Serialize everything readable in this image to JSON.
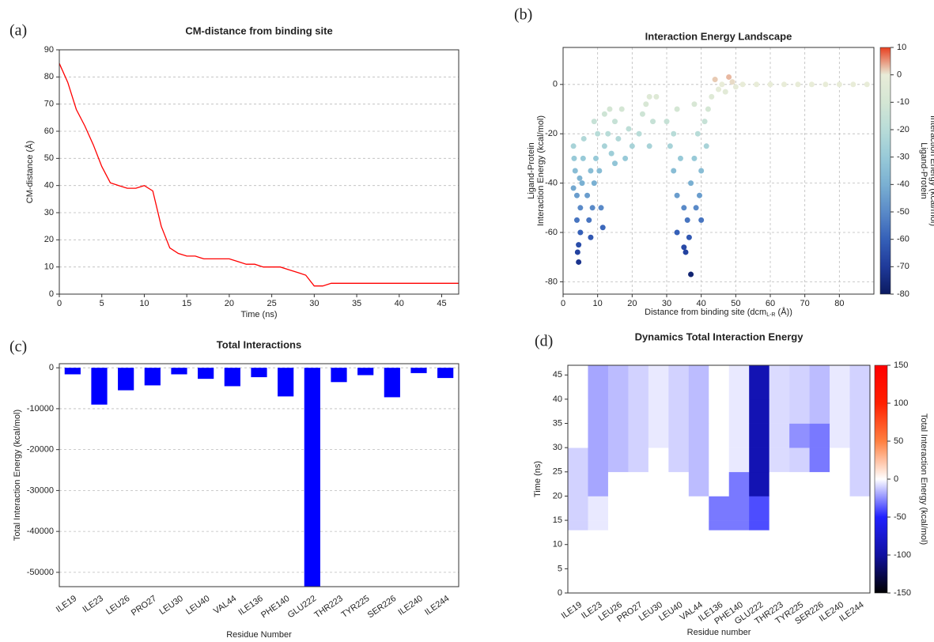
{
  "chart_data": [
    {
      "type": "line",
      "panel_label": "(a)",
      "title": "CM-distance from binding site",
      "xlabel": "Time (ns)",
      "ylabel": "CM-distance (Å)",
      "x": [
        0,
        1,
        2,
        3,
        4,
        5,
        6,
        7,
        8,
        9,
        10,
        11,
        12,
        13,
        14,
        15,
        16,
        17,
        18,
        19,
        20,
        21,
        22,
        23,
        24,
        25,
        26,
        27,
        28,
        29,
        30,
        31,
        32,
        33,
        34,
        35,
        36,
        37,
        38,
        39,
        40,
        41,
        42,
        43,
        44,
        45,
        46,
        47
      ],
      "values": [
        85,
        78,
        68,
        62,
        55,
        47,
        41,
        40,
        39,
        39,
        40,
        38,
        25,
        17,
        15,
        14,
        14,
        13,
        13,
        13,
        13,
        12,
        11,
        11,
        10,
        10,
        10,
        9,
        8,
        7,
        3,
        3,
        4,
        4,
        4,
        4,
        4,
        4,
        4,
        4,
        4,
        4,
        4,
        4,
        4,
        4,
        4,
        4
      ],
      "color": "#ff0000",
      "xlim": [
        0,
        47
      ],
      "xticks": [
        0,
        5,
        10,
        15,
        20,
        25,
        30,
        35,
        40,
        45
      ],
      "ylim": [
        0,
        90
      ],
      "yticks": [
        0,
        10,
        20,
        30,
        40,
        50,
        60,
        70,
        80,
        90
      ],
      "grid": true
    },
    {
      "type": "scatter",
      "panel_label": "(b)",
      "title": "Interaction Energy Landscape",
      "xlabel": [
        "Distance from binding site (dcm",
        "L-R",
        " (Å))"
      ],
      "ylabel": [
        "Ligand-Protein",
        "Interaction Energy (kcal/mol)"
      ],
      "colorbar_label": [
        "Ligand-Protein",
        "Interaction Energy (kcal/mol)"
      ],
      "x": [
        3,
        3.5,
        4,
        4,
        4.5,
        4.5,
        5,
        5,
        5.5,
        3.2,
        4.2,
        5.8,
        3,
        6,
        4.8,
        7,
        7.5,
        8,
        8.5,
        9,
        9.5,
        10,
        10.5,
        11,
        11.5,
        12,
        8,
        9,
        12,
        13,
        14,
        15,
        16,
        17,
        18,
        19,
        20,
        15,
        13.5,
        22,
        23,
        24,
        25,
        26,
        27,
        25,
        30,
        31,
        32,
        33,
        33,
        34,
        35,
        32,
        33,
        35,
        35.5,
        37,
        36,
        36.5,
        37,
        38,
        38.5,
        39,
        39.5,
        40,
        41,
        41.5,
        38,
        40,
        42,
        43,
        44,
        45,
        46,
        47,
        48,
        49,
        50,
        52,
        56,
        60,
        64,
        68,
        72,
        76,
        80,
        84,
        88
      ],
      "y": [
        -25,
        -35,
        -45,
        -55,
        -65,
        -72,
        -60,
        -50,
        -40,
        -30,
        -68,
        -30,
        -42,
        -22,
        -38,
        -45,
        -55,
        -62,
        -50,
        -40,
        -30,
        -20,
        -35,
        -50,
        -58,
        -25,
        -35,
        -15,
        -12,
        -20,
        -28,
        -15,
        -22,
        -10,
        -30,
        -18,
        -25,
        -32,
        -10,
        -20,
        -12,
        -8,
        -25,
        -15,
        -5,
        -5,
        -15,
        -25,
        -35,
        -45,
        -10,
        -30,
        -50,
        -20,
        -60,
        -66,
        -68,
        -77,
        -55,
        -62,
        -40,
        -30,
        -50,
        -20,
        -45,
        -35,
        -15,
        -25,
        -8,
        -55,
        -10,
        -5,
        2,
        -2,
        0,
        -3,
        3,
        1,
        -1,
        0,
        0,
        0,
        0,
        0,
        0,
        0,
        0,
        0,
        0
      ],
      "xlim": [
        0,
        90
      ],
      "xticks": [
        0,
        10,
        20,
        30,
        40,
        50,
        60,
        70,
        80
      ],
      "ylim": [
        -85,
        15
      ],
      "yticks": [
        -80,
        -60,
        -40,
        -20,
        0
      ],
      "grid": true,
      "clim": [
        -80,
        10
      ],
      "cticks": [
        -80,
        -70,
        -60,
        -50,
        -40,
        -30,
        -20,
        -10,
        0,
        10
      ],
      "colormap": [
        "#0b1a60",
        "#1f3a9a",
        "#3560b8",
        "#5a8ac8",
        "#7ab0d2",
        "#98cad8",
        "#b8dcd8",
        "#d4e6d4",
        "#e8ecd8",
        "#e84020"
      ]
    },
    {
      "type": "bar",
      "panel_label": "(c)",
      "title": "Total Interactions",
      "xlabel": "Residue Number",
      "ylabel": "Total Interaction Energy (kcal/mol)",
      "categories": [
        "ILE19",
        "ILE23",
        "LEU26",
        "PRO27",
        "LEU30",
        "LEU40",
        "VAL44",
        "ILE136",
        "PHE140",
        "GLU222",
        "THR223",
        "TYR225",
        "SER226",
        "ILE240",
        "ILE244"
      ],
      "values": [
        -1600,
        -9000,
        -5500,
        -4300,
        -1600,
        -2700,
        -4500,
        -2300,
        -7000,
        -53500,
        -3500,
        -1800,
        -7200,
        -1300,
        -2500
      ],
      "color": "#0000ff",
      "ylim": [
        -53500,
        1000
      ],
      "yticks": [
        0,
        -10000,
        -20000,
        -30000,
        -40000,
        -50000
      ],
      "grid": true
    },
    {
      "type": "heatmap",
      "panel_label": "(d)",
      "title": "Dynamics Total Interaction Energy",
      "xlabel": "Residue number",
      "ylabel": "Time (ns)",
      "colorbar_label": "Total Interaction Energy (kcal/mol)",
      "categories": [
        "ILE19",
        "ILE23",
        "LEU26",
        "PRO27",
        "LEU30",
        "LEU40",
        "VAL44",
        "ILE136",
        "PHE140",
        "GLU222",
        "THR223",
        "TYR225",
        "SER226",
        "ILE240",
        "ILE244"
      ],
      "ybins": [
        0,
        5,
        10,
        13,
        15,
        20,
        25,
        30,
        35,
        40,
        47
      ],
      "values": [
        [
          0,
          0,
          0,
          0,
          0,
          0,
          0,
          0,
          0,
          0,
          0,
          0,
          0,
          0,
          0
        ],
        [
          0,
          0,
          0,
          0,
          0,
          0,
          0,
          0,
          0,
          0,
          0,
          0,
          0,
          0,
          0
        ],
        [
          0,
          0,
          0,
          0,
          0,
          0,
          0,
          0,
          0,
          0,
          0,
          0,
          0,
          0,
          0
        ],
        [
          -10,
          -5,
          0,
          0,
          0,
          0,
          0,
          -30,
          -30,
          -40,
          0,
          0,
          0,
          0,
          0
        ],
        [
          -10,
          -5,
          0,
          0,
          0,
          0,
          0,
          -30,
          -30,
          -40,
          0,
          0,
          0,
          0,
          0
        ],
        [
          -10,
          -20,
          0,
          0,
          0,
          0,
          -15,
          0,
          -30,
          -90,
          0,
          0,
          0,
          0,
          -10
        ],
        [
          -10,
          -20,
          -15,
          -10,
          0,
          -10,
          -15,
          0,
          -5,
          -90,
          -8,
          -10,
          -30,
          0,
          -10
        ],
        [
          0,
          -20,
          -15,
          -10,
          -5,
          -10,
          -15,
          0,
          -5,
          -90,
          -8,
          -25,
          -30,
          -5,
          -10
        ],
        [
          0,
          -20,
          -15,
          -10,
          -5,
          -10,
          -15,
          0,
          -5,
          -90,
          -8,
          -10,
          -15,
          -5,
          -10
        ],
        [
          0,
          -20,
          -15,
          -10,
          -5,
          -10,
          -15,
          0,
          -5,
          -90,
          -8,
          -10,
          -15,
          -5,
          -10
        ]
      ],
      "ylim": [
        0,
        47
      ],
      "yticks": [
        0,
        5,
        10,
        15,
        20,
        25,
        30,
        35,
        40,
        45
      ],
      "clim": [
        -150,
        150
      ],
      "cticks": [
        -150,
        -100,
        -50,
        0,
        50,
        100,
        150
      ],
      "colormap": [
        "#000000",
        "#1010a0",
        "#2020ff",
        "#ffffff",
        "#ff8040",
        "#ff2000",
        "#ff0000"
      ]
    }
  ]
}
